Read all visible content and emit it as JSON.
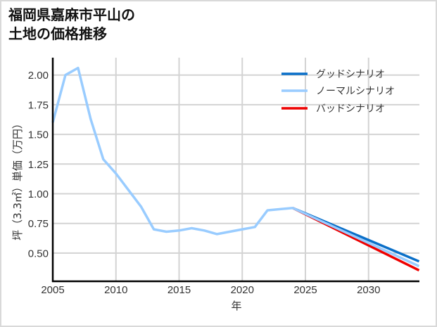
{
  "title": {
    "line1": "福岡県嘉麻市平山の",
    "line2": "土地の価格推移"
  },
  "chart_data": {
    "type": "line",
    "title": "福岡県嘉麻市平山の土地の価格推移",
    "xlabel": "年",
    "ylabel": "坪（3.3㎡）単価（万円）",
    "xlim": [
      2005,
      2034
    ],
    "ylim": [
      0.27,
      2.15
    ],
    "x_ticks": [
      2005,
      2010,
      2015,
      2020,
      2025,
      2030
    ],
    "y_ticks": [
      0.5,
      0.75,
      1.0,
      1.25,
      1.5,
      1.75,
      2.0
    ],
    "y_tick_labels": [
      "0.50",
      "0.75",
      "1.00",
      "1.25",
      "1.50",
      "1.75",
      "2.00"
    ],
    "grid": true,
    "legend_position": "upper right",
    "series": [
      {
        "name": "グッドシナリオ",
        "color": "#0a6fc8",
        "x": [
          2024,
          2034
        ],
        "values": [
          0.88,
          0.43
        ]
      },
      {
        "name": "ノーマルシナリオ",
        "color": "#99ccff",
        "x": [
          2005,
          2006,
          2007,
          2008,
          2009,
          2010,
          2011,
          2012,
          2013,
          2014,
          2015,
          2016,
          2017,
          2018,
          2019,
          2020,
          2021,
          2022,
          2023,
          2024,
          2034
        ],
        "values": [
          1.6,
          2.0,
          2.06,
          1.63,
          1.29,
          1.17,
          1.03,
          0.89,
          0.7,
          0.68,
          0.69,
          0.71,
          0.69,
          0.66,
          0.68,
          0.7,
          0.72,
          0.86,
          0.87,
          0.88,
          0.39
        ]
      },
      {
        "name": "バッドシナリオ",
        "color": "#ee0000",
        "x": [
          2024,
          2034
        ],
        "values": [
          0.88,
          0.355
        ]
      }
    ]
  }
}
